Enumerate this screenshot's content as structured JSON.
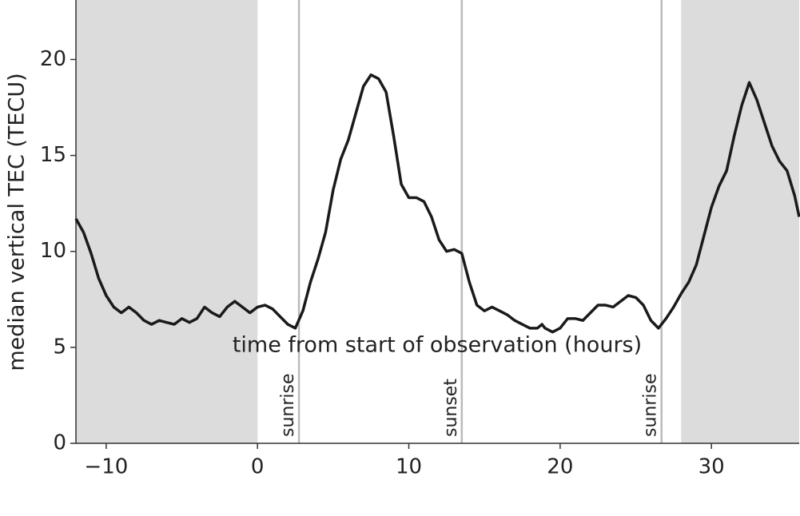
{
  "chart_data": {
    "type": "line",
    "xlabel": "time from start of observation (hours)",
    "ylabel": "median vertical TEC (TECU)",
    "xlim": [
      -12,
      35.8
    ],
    "ylim": [
      0,
      23.1
    ],
    "xticks": [
      {
        "value": -10,
        "label": "−10"
      },
      0,
      10,
      20,
      30
    ],
    "yticks": [
      0,
      5,
      10,
      15,
      20
    ],
    "shaded": [
      [
        -12,
        0
      ],
      [
        28,
        35.8
      ]
    ],
    "shade_color": "#dcdcdc",
    "annotations": [
      {
        "text": "sunrise",
        "x": 2.74
      },
      {
        "text": "sunset",
        "x": 13.5
      },
      {
        "text": "sunrise",
        "x": 26.7
      }
    ],
    "annotation_color": "#bbbbbb",
    "series": [
      {
        "color": "#1a1a1a",
        "x": [
          -12,
          -11.5,
          -11,
          -10.5,
          -10,
          -9.5,
          -9,
          -8.5,
          -8,
          -7.5,
          -7,
          -6.5,
          -6,
          -5.5,
          -5,
          -4.5,
          -4,
          -3.5,
          -3,
          -2.5,
          -2,
          -1.5,
          -1,
          -0.5,
          0,
          0.5,
          1,
          1.5,
          2,
          2.5,
          3,
          3.5,
          4,
          4.5,
          5,
          5.5,
          6,
          6.5,
          7,
          7.5,
          8,
          8.5,
          9,
          9.5,
          10,
          10.5,
          11,
          11.5,
          12,
          12.5,
          13,
          13.5,
          14,
          14.5,
          15,
          15.5,
          16,
          16.5,
          17,
          17.5,
          18,
          18.5,
          18.8,
          19,
          19.5,
          20,
          20.5,
          21,
          21.5,
          22,
          22.5,
          23,
          23.5,
          24,
          24.5,
          25,
          25.5,
          26,
          26.5,
          27,
          27.5,
          28,
          28.5,
          29,
          29.5,
          30,
          30.5,
          31,
          31.5,
          32,
          32.5,
          33,
          33.5,
          34,
          34.5,
          35,
          35.5,
          35.8
        ],
        "values": [
          11.7,
          11.0,
          9.9,
          8.6,
          7.7,
          7.1,
          6.8,
          7.1,
          6.8,
          6.4,
          6.2,
          6.4,
          6.3,
          6.2,
          6.5,
          6.3,
          6.5,
          7.1,
          6.8,
          6.6,
          7.1,
          7.4,
          7.1,
          6.8,
          7.1,
          7.2,
          7.0,
          6.6,
          6.2,
          6.0,
          6.9,
          8.4,
          9.6,
          11.0,
          13.2,
          14.8,
          15.8,
          17.2,
          18.6,
          19.2,
          19.0,
          18.3,
          16.0,
          13.5,
          12.8,
          12.8,
          12.6,
          11.8,
          10.6,
          10.0,
          10.1,
          9.9,
          8.4,
          7.2,
          6.9,
          7.1,
          6.9,
          6.7,
          6.4,
          6.2,
          6.0,
          6.0,
          6.2,
          6.0,
          5.8,
          6.0,
          6.5,
          6.5,
          6.4,
          6.8,
          7.2,
          7.2,
          7.1,
          7.4,
          7.7,
          7.6,
          7.2,
          6.4,
          6.0,
          6.5,
          7.1,
          7.8,
          8.4,
          9.3,
          10.8,
          12.3,
          13.4,
          14.2,
          16.0,
          17.6,
          18.8,
          17.9,
          16.7,
          15.5,
          14.7,
          14.2,
          12.9,
          11.8
        ]
      }
    ]
  }
}
